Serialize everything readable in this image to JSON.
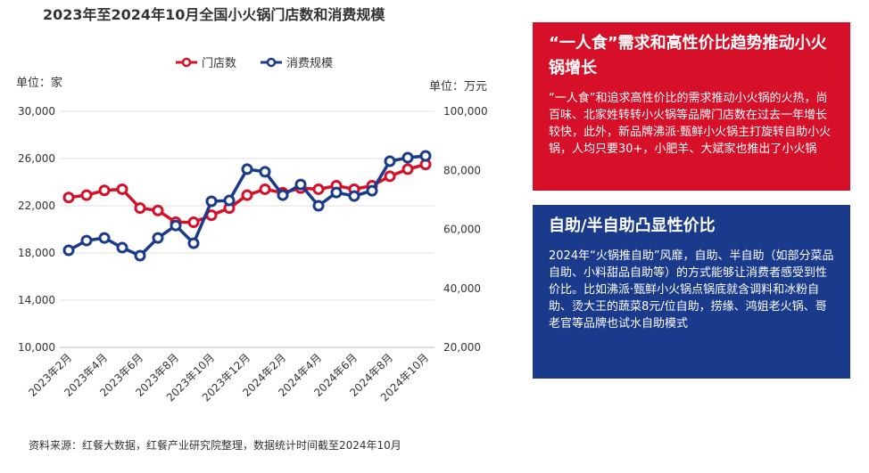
{
  "chart_data": {
    "type": "line",
    "title": "2023年至2024年10月全国小火锅门店数和消费规模",
    "ylabel": "单位：家",
    "y2label": "单位：万元",
    "categories": [
      "2023年2月",
      null,
      "2023年4月",
      null,
      "2023年6月",
      null,
      "2023年8月",
      null,
      "2023年10月",
      null,
      "2023年12月",
      null,
      "2024年2月",
      null,
      "2024年4月",
      null,
      "2024年6月",
      null,
      "2024年8月",
      null,
      "2024年10月"
    ],
    "series": [
      {
        "name": "门店数",
        "color": "#d7102a",
        "values": [
          22700,
          22900,
          23300,
          23400,
          21800,
          21600,
          20600,
          20600,
          21200,
          21800,
          22900,
          23400,
          23100,
          23500,
          23400,
          23700,
          23400,
          23700,
          24500,
          25100,
          25500
        ]
      },
      {
        "name": "消费规模",
        "color": "#1a3a8c",
        "axis": "y2",
        "values": [
          52900,
          56200,
          57100,
          53800,
          51100,
          57100,
          61300,
          55300,
          69500,
          69800,
          80400,
          79500,
          71600,
          75200,
          68000,
          72500,
          71300,
          73100,
          83100,
          84300,
          84900
        ]
      }
    ],
    "ylim": [
      10000,
      30000
    ],
    "yticks": [
      {
        "value": 10000,
        "label": "10,000"
      },
      {
        "value": 14000,
        "label": "14,000"
      },
      {
        "value": 18000,
        "label": "18,000"
      },
      {
        "value": 22000,
        "label": "22,000"
      },
      {
        "value": 26000,
        "label": "26,000"
      },
      {
        "value": 30000,
        "label": "30,000"
      }
    ],
    "y2lim": [
      20000,
      100000
    ],
    "y2ticks": [
      {
        "value": 20000,
        "label": "20,000"
      },
      {
        "value": 40000,
        "label": "40,000"
      },
      {
        "value": 60000,
        "label": "60,000"
      },
      {
        "value": 80000,
        "label": "80,000"
      },
      {
        "value": 100000,
        "label": "100,000"
      }
    ],
    "legend": "top"
  },
  "panels": [
    {
      "title": "“一人食”需求和高性价比趋势推动小火锅增长",
      "text": "“一人食”和追求高性价比的需求推动小火锅的火热，尚百味、北家姓转转小火锅等品牌门店数在过去一年增长较快，此外，新品牌沸派·甄鲜小火锅主打旋转自助小火锅，人均只要30+，小肥羊、大斌家也推出了小火锅"
    },
    {
      "title": "自助/半自助凸显性价比",
      "text": "2024年“火锅推自助”风靡，自助、半自助（如部分菜品自助、小料甜品自助等）的方式能够让消费者感受到性价比。比如沸派·甄鲜小火锅点锅底就含调料和冰粉自助、烫大王的蔬菜8元/位自助，捞缘、鸿姐老火锅、哥老官等品牌也试水自助模式"
    }
  ],
  "source": "资料来源：红餐大数据，红餐产业研究院整理，数据统计时间截至2024年10月"
}
